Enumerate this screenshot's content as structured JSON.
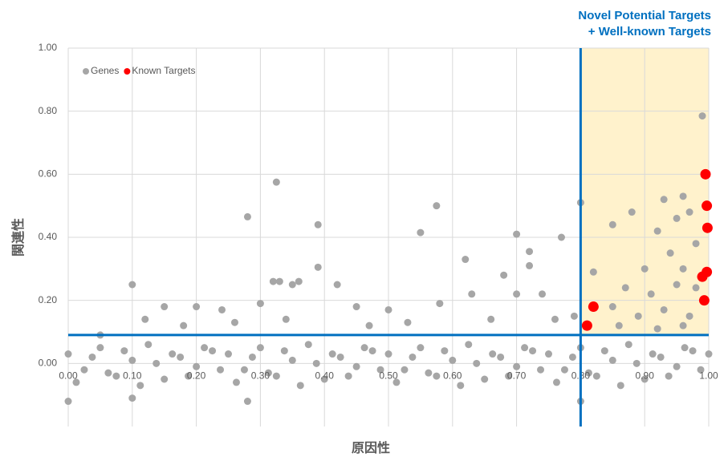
{
  "chart_data": {
    "type": "scatter",
    "annotation": [
      "Novel Potential Targets",
      "+ Well-known Targets"
    ],
    "x_label": "原因性",
    "y_label": "関連性",
    "xlim": [
      0,
      1
    ],
    "ylim": [
      -0.2,
      1
    ],
    "xticks": [
      {
        "value": 0,
        "label": "0.00"
      },
      {
        "value": 0.1,
        "label": "0.10"
      },
      {
        "value": 0.2,
        "label": "0.20"
      },
      {
        "value": 0.3,
        "label": "0.30"
      },
      {
        "value": 0.4,
        "label": "0.40"
      },
      {
        "value": 0.5,
        "label": "0.50"
      },
      {
        "value": 0.6,
        "label": "0.60"
      },
      {
        "value": 0.7,
        "label": "0.70"
      },
      {
        "value": 0.8,
        "label": "0.80"
      },
      {
        "value": 0.9,
        "label": "0.90"
      },
      {
        "value": 1,
        "label": "1.00"
      }
    ],
    "yticks": [
      {
        "value": 0,
        "label": "0.00"
      },
      {
        "value": 0.2,
        "label": "0.20"
      },
      {
        "value": 0.4,
        "label": "0.40"
      },
      {
        "value": 0.6,
        "label": "0.60"
      },
      {
        "value": 0.8,
        "label": "0.80"
      },
      {
        "value": 1,
        "label": "1.00"
      }
    ],
    "grid": true,
    "legend": "upper-left",
    "threshold_x": 0.8,
    "threshold_y": 0.09,
    "threshold_color": "#0070c0",
    "highlight_color": "#fff2cc",
    "series": [
      {
        "name": "Genes",
        "color": "#a6a6a6",
        "x": [
          0,
          0.025,
          0.05,
          0.075,
          0.1,
          0.125,
          0.15,
          0.175,
          0.2,
          0.225,
          0.25,
          0.275,
          0.3,
          0.325,
          0.35,
          0.375,
          0.4,
          0.425,
          0.45,
          0.475,
          0.5,
          0.525,
          0.55,
          0.575,
          0.6,
          0.625,
          0.65,
          0.675,
          0.7,
          0.725,
          0.75,
          0.775,
          0.8,
          0.825,
          0.85,
          0.875,
          0.9,
          0.925,
          0.95,
          0.975,
          1,
          0.0125,
          0.0375,
          0.0625,
          0.0875,
          0.1125,
          0.1375,
          0.1625,
          0.1875,
          0.2125,
          0.2375,
          0.2625,
          0.2875,
          0.3125,
          0.3375,
          0.3625,
          0.3875,
          0.4125,
          0.4375,
          0.4625,
          0.4875,
          0.5125,
          0.5375,
          0.5625,
          0.5875,
          0.6125,
          0.6375,
          0.6625,
          0.6875,
          0.7125,
          0.7375,
          0.7625,
          0.7875,
          0.8125,
          0.8375,
          0.8625,
          0.8875,
          0.9125,
          0.9375,
          0.9625,
          0.9875,
          0.99,
          0.28,
          0.325,
          0.39,
          0.575,
          0.55,
          0.7,
          0.8,
          0.77,
          0.1,
          0.32,
          0.33,
          0.39,
          0.36,
          0.35,
          0.62,
          0.72,
          0.72,
          0.68,
          0.82,
          0.85,
          0.88,
          0.93,
          0.96,
          0.97,
          0.92,
          0.95,
          0.98,
          0.94,
          0.96,
          0.9,
          0.87,
          0.91,
          0.95,
          0.85,
          0.89,
          0.93,
          0.97,
          0.98,
          0.86,
          0.92,
          0.96,
          0.79,
          0.76,
          0.15,
          0.2,
          0.24,
          0.42,
          0.45,
          0.5,
          0.58,
          0.63,
          0.7,
          0.74,
          0.3,
          0.05,
          0.18,
          0.26,
          0.34,
          0.47,
          0.53,
          0.66,
          0.12,
          0,
          0.28,
          0.8,
          0.1
        ],
        "y": [
          0.03,
          -0.02,
          0.05,
          -0.04,
          0.01,
          0.06,
          -0.05,
          0.02,
          -0.01,
          0.04,
          0.03,
          -0.02,
          0.05,
          -0.04,
          0.01,
          0.06,
          -0.05,
          0.02,
          -0.01,
          0.04,
          0.03,
          -0.02,
          0.05,
          -0.04,
          0.01,
          0.06,
          -0.05,
          0.02,
          -0.01,
          0.04,
          0.03,
          -0.02,
          0.05,
          -0.04,
          0.01,
          0.06,
          -0.05,
          0.02,
          -0.01,
          0.04,
          0.03,
          -0.06,
          0.02,
          -0.03,
          0.04,
          -0.07,
          0,
          0.03,
          -0.04,
          0.05,
          -0.02,
          -0.06,
          0.02,
          -0.03,
          0.04,
          -0.07,
          0,
          0.03,
          -0.04,
          0.05,
          -0.02,
          -0.06,
          0.02,
          -0.03,
          0.04,
          -0.07,
          0,
          0.03,
          -0.04,
          0.05,
          -0.02,
          -0.06,
          0.02,
          -0.03,
          0.04,
          -0.07,
          0,
          0.03,
          -0.04,
          0.05,
          -0.02,
          0.785,
          0.465,
          0.575,
          0.44,
          0.5,
          0.415,
          0.41,
          0.51,
          0.4,
          0.25,
          0.26,
          0.26,
          0.305,
          0.26,
          0.25,
          0.33,
          0.355,
          0.31,
          0.28,
          0.29,
          0.44,
          0.48,
          0.52,
          0.53,
          0.48,
          0.42,
          0.46,
          0.38,
          0.35,
          0.3,
          0.3,
          0.24,
          0.22,
          0.25,
          0.18,
          0.15,
          0.17,
          0.15,
          0.24,
          0.12,
          0.11,
          0.12,
          0.15,
          0.14,
          0.18,
          0.18,
          0.17,
          0.25,
          0.18,
          0.17,
          0.19,
          0.22,
          0.22,
          0.22,
          0.19,
          0.09,
          0.12,
          0.13,
          0.14,
          0.12,
          0.13,
          0.14,
          0.14,
          -0.12,
          -0.12,
          -0.12,
          -0.11
        ]
      },
      {
        "name": "Known Targets",
        "color": "#ff0000",
        "x": [
          0.81,
          0.82,
          0.995,
          0.997,
          0.998,
          0.997,
          0.99,
          0.993
        ],
        "y": [
          0.12,
          0.18,
          0.6,
          0.5,
          0.43,
          0.29,
          0.275,
          0.2
        ]
      }
    ]
  }
}
